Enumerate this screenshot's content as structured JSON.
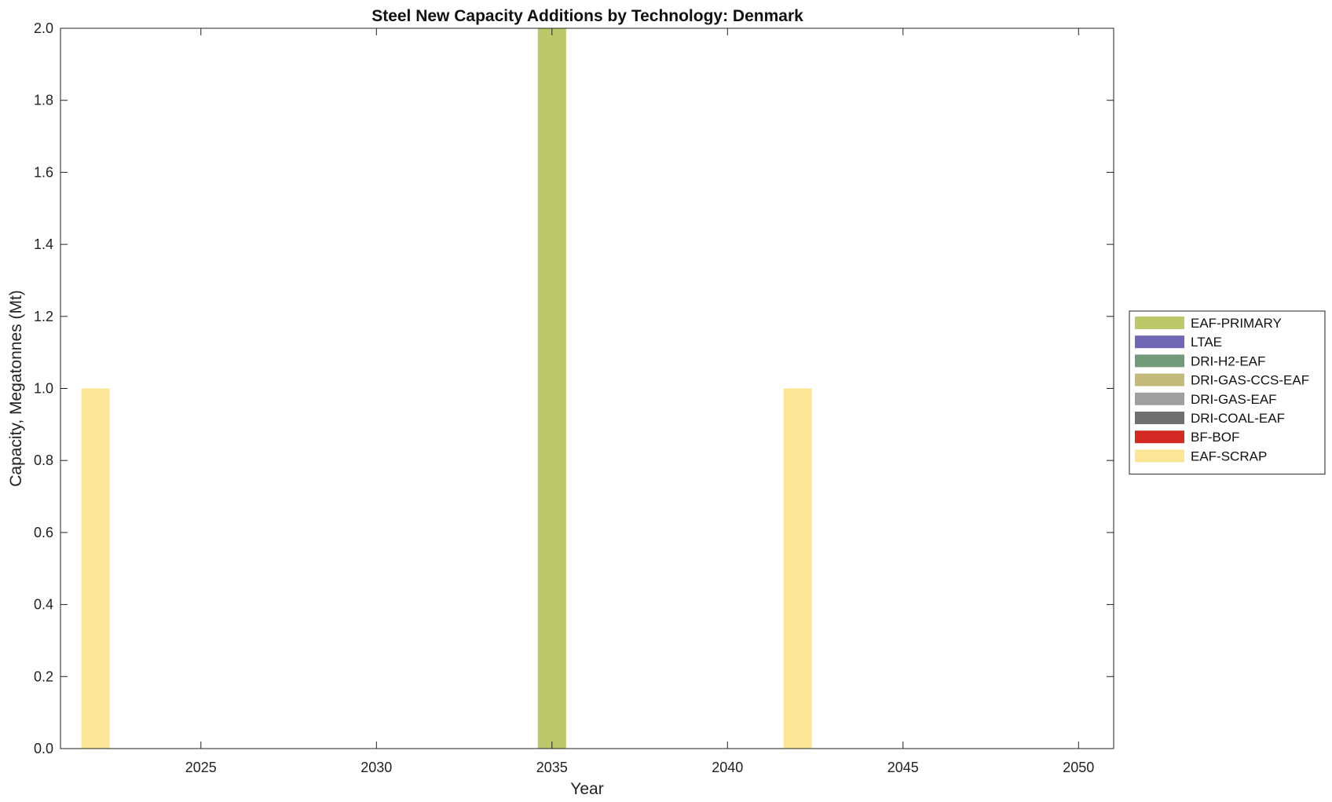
{
  "chart_data": {
    "type": "bar",
    "stacked": true,
    "title": "Steel New Capacity Additions by Technology: Denmark",
    "xlabel": "Year",
    "ylabel": "Capacity, Megatonnes (Mt)",
    "xlim": [
      2021,
      2051
    ],
    "ylim": [
      0,
      2
    ],
    "xticks": [
      2025,
      2030,
      2035,
      2040,
      2045,
      2050
    ],
    "yticks": [
      "0.0",
      "0.2",
      "0.4",
      "0.6",
      "0.8",
      "1.0",
      "1.2",
      "1.4",
      "1.6",
      "1.8",
      "2.0"
    ],
    "legend_position": "right",
    "grid": false,
    "series": [
      {
        "name": "EAF-PRIMARY",
        "color": "#bcc86a",
        "points": [
          {
            "x": 2035,
            "y": 2.0
          }
        ]
      },
      {
        "name": "LTAE",
        "color": "#7068b4",
        "points": []
      },
      {
        "name": "DRI-H2-EAF",
        "color": "#749a7c",
        "points": []
      },
      {
        "name": "DRI-GAS-CCS-EAF",
        "color": "#c4ba7c",
        "points": []
      },
      {
        "name": "DRI-GAS-EAF",
        "color": "#a0a0a0",
        "points": []
      },
      {
        "name": "DRI-COAL-EAF",
        "color": "#6e6e6e",
        "points": []
      },
      {
        "name": "BF-BOF",
        "color": "#d42a24",
        "points": []
      },
      {
        "name": "EAF-SCRAP",
        "color": "#fde597",
        "points": [
          {
            "x": 2022,
            "y": 1.0
          },
          {
            "x": 2042,
            "y": 1.0
          }
        ]
      }
    ]
  }
}
